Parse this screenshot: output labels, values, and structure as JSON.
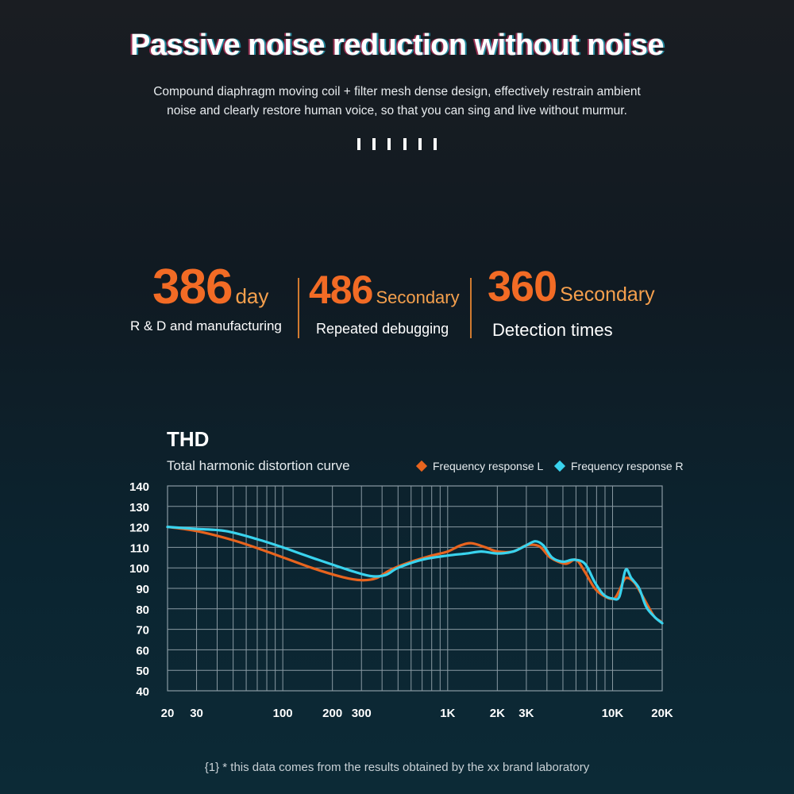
{
  "header": {
    "title": "Passive noise reduction without noise",
    "subtitle_line1": "Compound diaphragm moving coil + filter mesh dense design, effectively restrain ambient",
    "subtitle_line2": "noise and clearly restore human voice, so that you can sing and live without murmur."
  },
  "stats": [
    {
      "value": "386",
      "unit": "day",
      "caption": "R & D and manufacturing"
    },
    {
      "value": "486",
      "unit": "Secondary",
      "caption": "Repeated debugging"
    },
    {
      "value": "360",
      "unit": "Secondary",
      "caption": "Detection times"
    }
  ],
  "colors": {
    "accent_orange": "#f26b25",
    "unit_orange": "#f6a04d",
    "series_L": "#e8641e",
    "series_R": "#39d3ee",
    "grid": "#8a9aa3"
  },
  "footnote": "{1} * this data comes from the results obtained by the xx brand laboratory",
  "chart_data": {
    "type": "line",
    "title": "THD",
    "subtitle": "Total harmonic distortion curve",
    "x_scale": "log",
    "x_tick_labels": [
      "20",
      "30",
      "100",
      "200",
      "300",
      "1K",
      "2K",
      "3K",
      "10K",
      "20K"
    ],
    "x_tick_values": [
      20,
      30,
      100,
      200,
      300,
      1000,
      2000,
      3000,
      10000,
      20000
    ],
    "xlim": [
      20,
      20000
    ],
    "ylim": [
      40,
      140
    ],
    "y_ticks": [
      140,
      130,
      120,
      110,
      100,
      90,
      80,
      70,
      60,
      50,
      40
    ],
    "grid": true,
    "legend_position": "top-right",
    "series": [
      {
        "name": "Frequency response L",
        "color": "#e8641e",
        "points": [
          [
            20,
            120
          ],
          [
            30,
            118
          ],
          [
            50,
            113.5
          ],
          [
            80,
            108
          ],
          [
            150,
            100
          ],
          [
            230,
            95.5
          ],
          [
            300,
            94
          ],
          [
            370,
            95
          ],
          [
            450,
            99
          ],
          [
            600,
            103
          ],
          [
            800,
            106
          ],
          [
            1000,
            108
          ],
          [
            1200,
            111
          ],
          [
            1400,
            112
          ],
          [
            1700,
            110
          ],
          [
            2000,
            108
          ],
          [
            2500,
            108
          ],
          [
            3000,
            111
          ],
          [
            3600,
            110.5
          ],
          [
            4200,
            105
          ],
          [
            5200,
            102
          ],
          [
            6000,
            104
          ],
          [
            6800,
            98
          ],
          [
            7800,
            90
          ],
          [
            9000,
            86
          ],
          [
            10200,
            85
          ],
          [
            11000,
            89
          ],
          [
            12000,
            95
          ],
          [
            13500,
            93
          ],
          [
            15000,
            87
          ],
          [
            16500,
            81
          ],
          [
            18000,
            76
          ],
          [
            19500,
            74
          ]
        ]
      },
      {
        "name": "Frequency response R",
        "color": "#39d3ee",
        "points": [
          [
            20,
            120
          ],
          [
            30,
            119
          ],
          [
            45,
            118
          ],
          [
            70,
            114
          ],
          [
            100,
            110
          ],
          [
            150,
            105
          ],
          [
            250,
            99
          ],
          [
            340,
            96
          ],
          [
            420,
            96.5
          ],
          [
            500,
            100
          ],
          [
            700,
            104
          ],
          [
            1000,
            106
          ],
          [
            1300,
            107
          ],
          [
            1600,
            108
          ],
          [
            2000,
            107
          ],
          [
            2500,
            108
          ],
          [
            3000,
            111
          ],
          [
            3400,
            113
          ],
          [
            3800,
            111
          ],
          [
            4300,
            105
          ],
          [
            5000,
            103
          ],
          [
            5800,
            104
          ],
          [
            6800,
            102
          ],
          [
            7800,
            93
          ],
          [
            8800,
            87
          ],
          [
            10000,
            85
          ],
          [
            11000,
            86
          ],
          [
            12000,
            99
          ],
          [
            13000,
            95
          ],
          [
            14500,
            90
          ],
          [
            16000,
            81
          ],
          [
            18000,
            76
          ],
          [
            20000,
            73
          ]
        ]
      }
    ]
  }
}
